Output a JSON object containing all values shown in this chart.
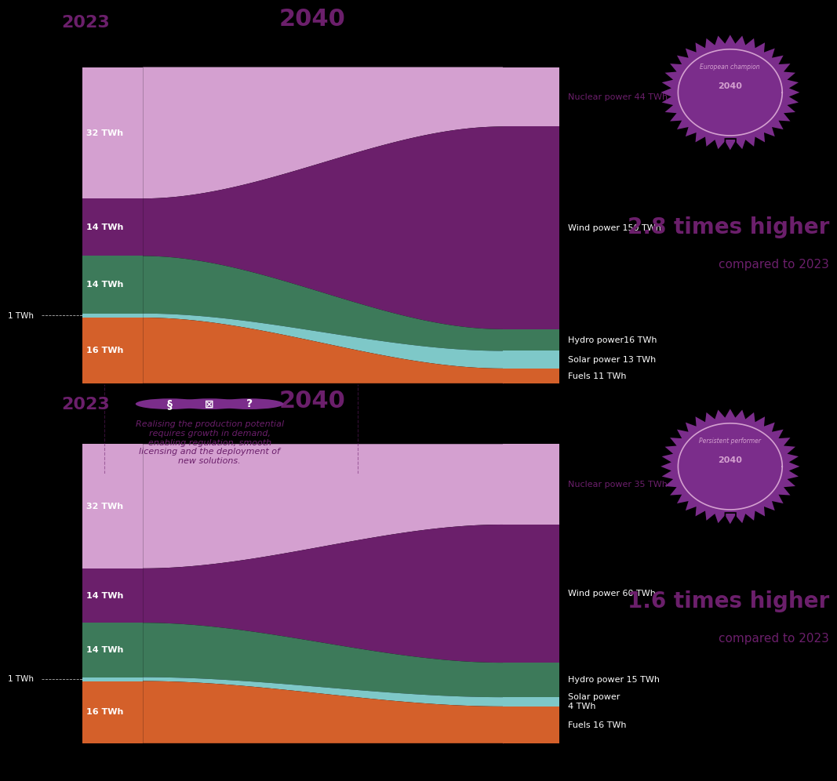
{
  "background": "#000000",
  "scenario1": {
    "title_year": "2040",
    "source_year": "2023",
    "source_values": [
      32,
      14,
      14,
      1,
      16
    ],
    "source_labels": [
      "32 TWh",
      "14 TWh",
      "14 TWh",
      "1 TWh",
      "16 TWh"
    ],
    "target_values": [
      44,
      150,
      16,
      13,
      11
    ],
    "target_labels": [
      "Nuclear power 44 TWh",
      "Wind power 150 TWh",
      "Hydro power16 TWh",
      "Solar power 13 TWh",
      "Fuels 11 TWh"
    ],
    "colors": [
      "#d4a0d0",
      "#6b1f6b",
      "#3d7a5a",
      "#7ec8c8",
      "#d4602a"
    ],
    "multiplier": "2.8 times higher",
    "multiplier_sub": "compared to 2023",
    "badge_label": "European champion",
    "badge_year": "2040"
  },
  "scenario2": {
    "title_year": "2040",
    "source_year": "2023",
    "source_values": [
      32,
      14,
      14,
      1,
      16
    ],
    "source_labels": [
      "32 TWh",
      "14 TWh",
      "14 TWh",
      "1 TWh",
      "16 TWh"
    ],
    "target_values": [
      35,
      60,
      15,
      4,
      16
    ],
    "target_labels": [
      "Nuclear power 35 TWh",
      "Wind power 60 TWh",
      "Hydro power 15 TWh",
      "Solar power\n4 TWh",
      "Fuels 16 TWh"
    ],
    "colors": [
      "#d4a0d0",
      "#6b1f6b",
      "#3d7a5a",
      "#7ec8c8",
      "#d4602a"
    ],
    "multiplier": "1.6 times higher",
    "multiplier_sub": "compared to 2023",
    "badge_label": "Persistent performer",
    "badge_year": "2040"
  },
  "middle_text": "Realising the production potential\nrequires growth in demand,\nenabling regulation, smooth\nlicensing and the deployment of\nnew solutions.",
  "purple_color": "#6b1f6b",
  "badge_purple": "#7b2d8b",
  "light_purple": "#d4a0d0",
  "teal": "#7ec8c8",
  "dark_teal": "#3d7a5a",
  "orange": "#d4602a"
}
